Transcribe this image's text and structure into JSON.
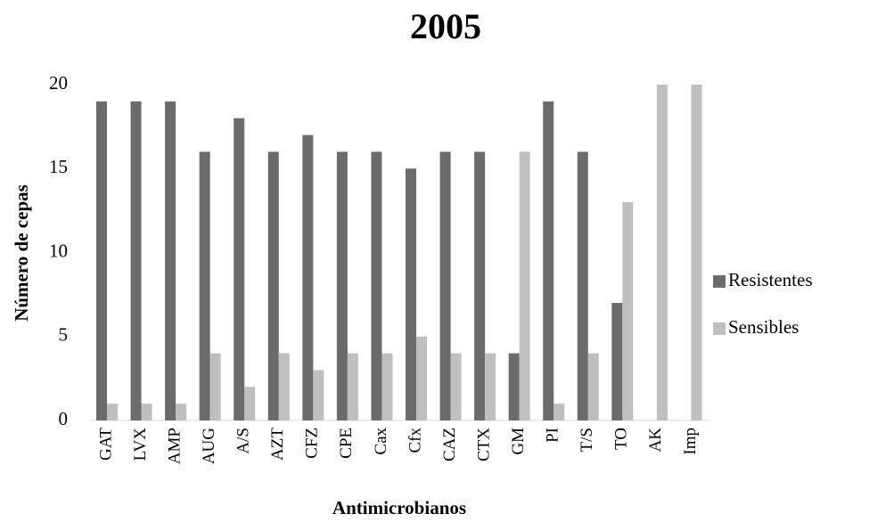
{
  "chart_data": {
    "type": "bar",
    "title": "2005",
    "x_label": "Antimicrobianos",
    "y_label": "Número de cepas",
    "categories": [
      "GAT",
      "LVX",
      "AMP",
      "AUG",
      "A/S",
      "AZT",
      "CFZ",
      "CPE",
      "Cax",
      "Cfx",
      "CAZ",
      "CTX",
      "GM",
      "PI",
      "T/S",
      "TO",
      "AK",
      "Imp"
    ],
    "series": [
      {
        "name": "Resistentes",
        "color": "#6b6b6b",
        "values": [
          19,
          19,
          19,
          16,
          18,
          16,
          17,
          16,
          16,
          15,
          16,
          16,
          4,
          19,
          16,
          7,
          0,
          0
        ]
      },
      {
        "name": "Sensibles",
        "color": "#bfbfbf",
        "values": [
          1,
          1,
          1,
          4,
          2,
          4,
          3,
          4,
          4,
          5,
          4,
          4,
          16,
          1,
          4,
          13,
          20,
          20
        ]
      }
    ],
    "ylim": [
      0,
      20
    ],
    "yticks": [
      0,
      5,
      10,
      15,
      20
    ],
    "grid": false,
    "legend": "right"
  }
}
